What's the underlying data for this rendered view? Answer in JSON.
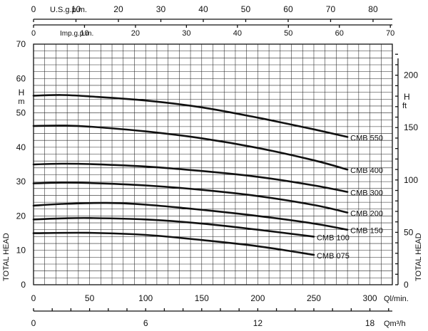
{
  "chart_data": {
    "type": "line",
    "xlabel": "Ql/min.",
    "ylabel_left": "H m",
    "ylabel_left_side": "TOTAL HEAD",
    "ylabel_right": "H ft",
    "ylabel_right_side": "TOTAL HEAD",
    "xlim": [
      0,
      320
    ],
    "ylim": [
      0,
      70
    ],
    "grid": true,
    "x_ticks": [
      0,
      50,
      100,
      150,
      200,
      250,
      300
    ],
    "y_ticks_left": [
      0,
      10,
      20,
      30,
      40,
      50,
      60,
      70
    ],
    "y_ticks_right": [
      0,
      50,
      100,
      150,
      200
    ],
    "top_axis_usgpm": {
      "label": "U.S.g.p.m.",
      "ticks": [
        0,
        10,
        20,
        30,
        40,
        50,
        60,
        70,
        80
      ]
    },
    "top_axis_impgpm": {
      "label": "Imp.g.p.m.",
      "ticks": [
        0,
        10,
        20,
        30,
        40,
        50,
        60,
        70
      ]
    },
    "bottom_axis_m3h": {
      "label": "Qm³/h",
      "ticks": [
        0,
        6,
        12,
        18
      ]
    },
    "series": [
      {
        "name": "CMB 550",
        "points": [
          [
            0,
            55
          ],
          [
            25,
            55.2
          ],
          [
            50,
            54.8
          ],
          [
            100,
            53.6
          ],
          [
            150,
            51.6
          ],
          [
            200,
            48.6
          ],
          [
            250,
            45.2
          ],
          [
            280,
            43
          ]
        ]
      },
      {
        "name": "CMB 400",
        "points": [
          [
            0,
            46.2
          ],
          [
            25,
            46.3
          ],
          [
            50,
            46
          ],
          [
            100,
            44.6
          ],
          [
            150,
            42.6
          ],
          [
            200,
            39.8
          ],
          [
            250,
            36.2
          ],
          [
            280,
            33.5
          ]
        ]
      },
      {
        "name": "CMB 300",
        "points": [
          [
            0,
            35
          ],
          [
            25,
            35.2
          ],
          [
            50,
            35.1
          ],
          [
            100,
            34.4
          ],
          [
            150,
            33.1
          ],
          [
            200,
            31.4
          ],
          [
            250,
            28.9
          ],
          [
            280,
            27
          ]
        ]
      },
      {
        "name": "CMB 200",
        "points": [
          [
            0,
            29.5
          ],
          [
            25,
            29.7
          ],
          [
            50,
            29.6
          ],
          [
            100,
            28.9
          ],
          [
            150,
            27.6
          ],
          [
            200,
            25.8
          ],
          [
            250,
            23.2
          ],
          [
            280,
            21
          ]
        ]
      },
      {
        "name": "CMB 150",
        "points": [
          [
            0,
            23
          ],
          [
            25,
            23.5
          ],
          [
            65,
            23.8
          ],
          [
            100,
            23.3
          ],
          [
            150,
            21.8
          ],
          [
            200,
            20
          ],
          [
            250,
            17.8
          ],
          [
            280,
            16
          ]
        ]
      },
      {
        "name": "CMB 100",
        "points": [
          [
            0,
            19
          ],
          [
            25,
            19.3
          ],
          [
            50,
            19.4
          ],
          [
            100,
            19
          ],
          [
            150,
            17.8
          ],
          [
            200,
            16
          ],
          [
            250,
            14
          ]
        ]
      },
      {
        "name": "CMB 075",
        "points": [
          [
            0,
            15
          ],
          [
            50,
            15.1
          ],
          [
            100,
            14.5
          ],
          [
            150,
            13
          ],
          [
            200,
            11.2
          ],
          [
            250,
            8.7
          ]
        ]
      }
    ]
  }
}
